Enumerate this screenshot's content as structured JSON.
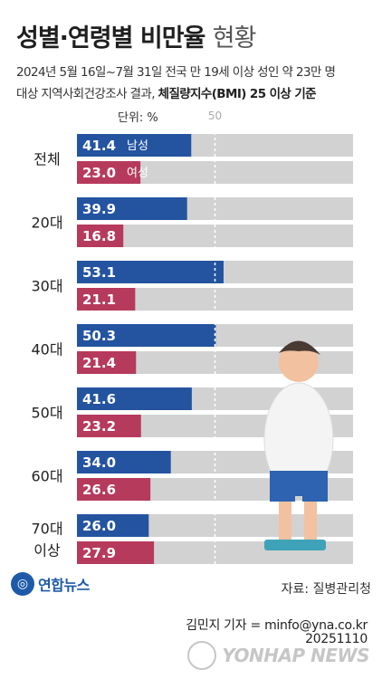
{
  "title_main": "성별·연령별 비만율",
  "title_light": "현황",
  "subtitle_line1": "2024년 5월 16일~7월 31일 전국 만 19세 이상 성인 약 23만 명",
  "subtitle_line2_plain": "대상 지역사회건강조사 결과,",
  "subtitle_line2_bold": "체질량지수(BMI) 25 이상 기준",
  "unit_label": "단위: %",
  "source": "자료: 질병관리청",
  "logo_text": "연합뉴스",
  "reporter": "김민지 기자 = minfo@yna.co.kr",
  "date_code": "20251110",
  "watermark": "YONHAP NEWS",
  "colors": {
    "male": "#2454a0",
    "female": "#b63a5c",
    "track": "#d2d2d2",
    "ref_line": "#ffffff"
  },
  "chart_data": {
    "type": "bar",
    "orientation": "horizontal",
    "unit": "%",
    "reference_line": 50,
    "xlim": [
      0,
      100
    ],
    "categories": [
      "전체",
      "20대",
      "30대",
      "40대",
      "50대",
      "60대",
      "70대 이상"
    ],
    "series": [
      {
        "name": "남성",
        "values": [
          41.4,
          39.9,
          53.1,
          50.3,
          41.6,
          34.0,
          26.0
        ]
      },
      {
        "name": "여성",
        "values": [
          23.0,
          16.8,
          21.1,
          21.4,
          23.2,
          26.6,
          27.9
        ]
      }
    ]
  }
}
